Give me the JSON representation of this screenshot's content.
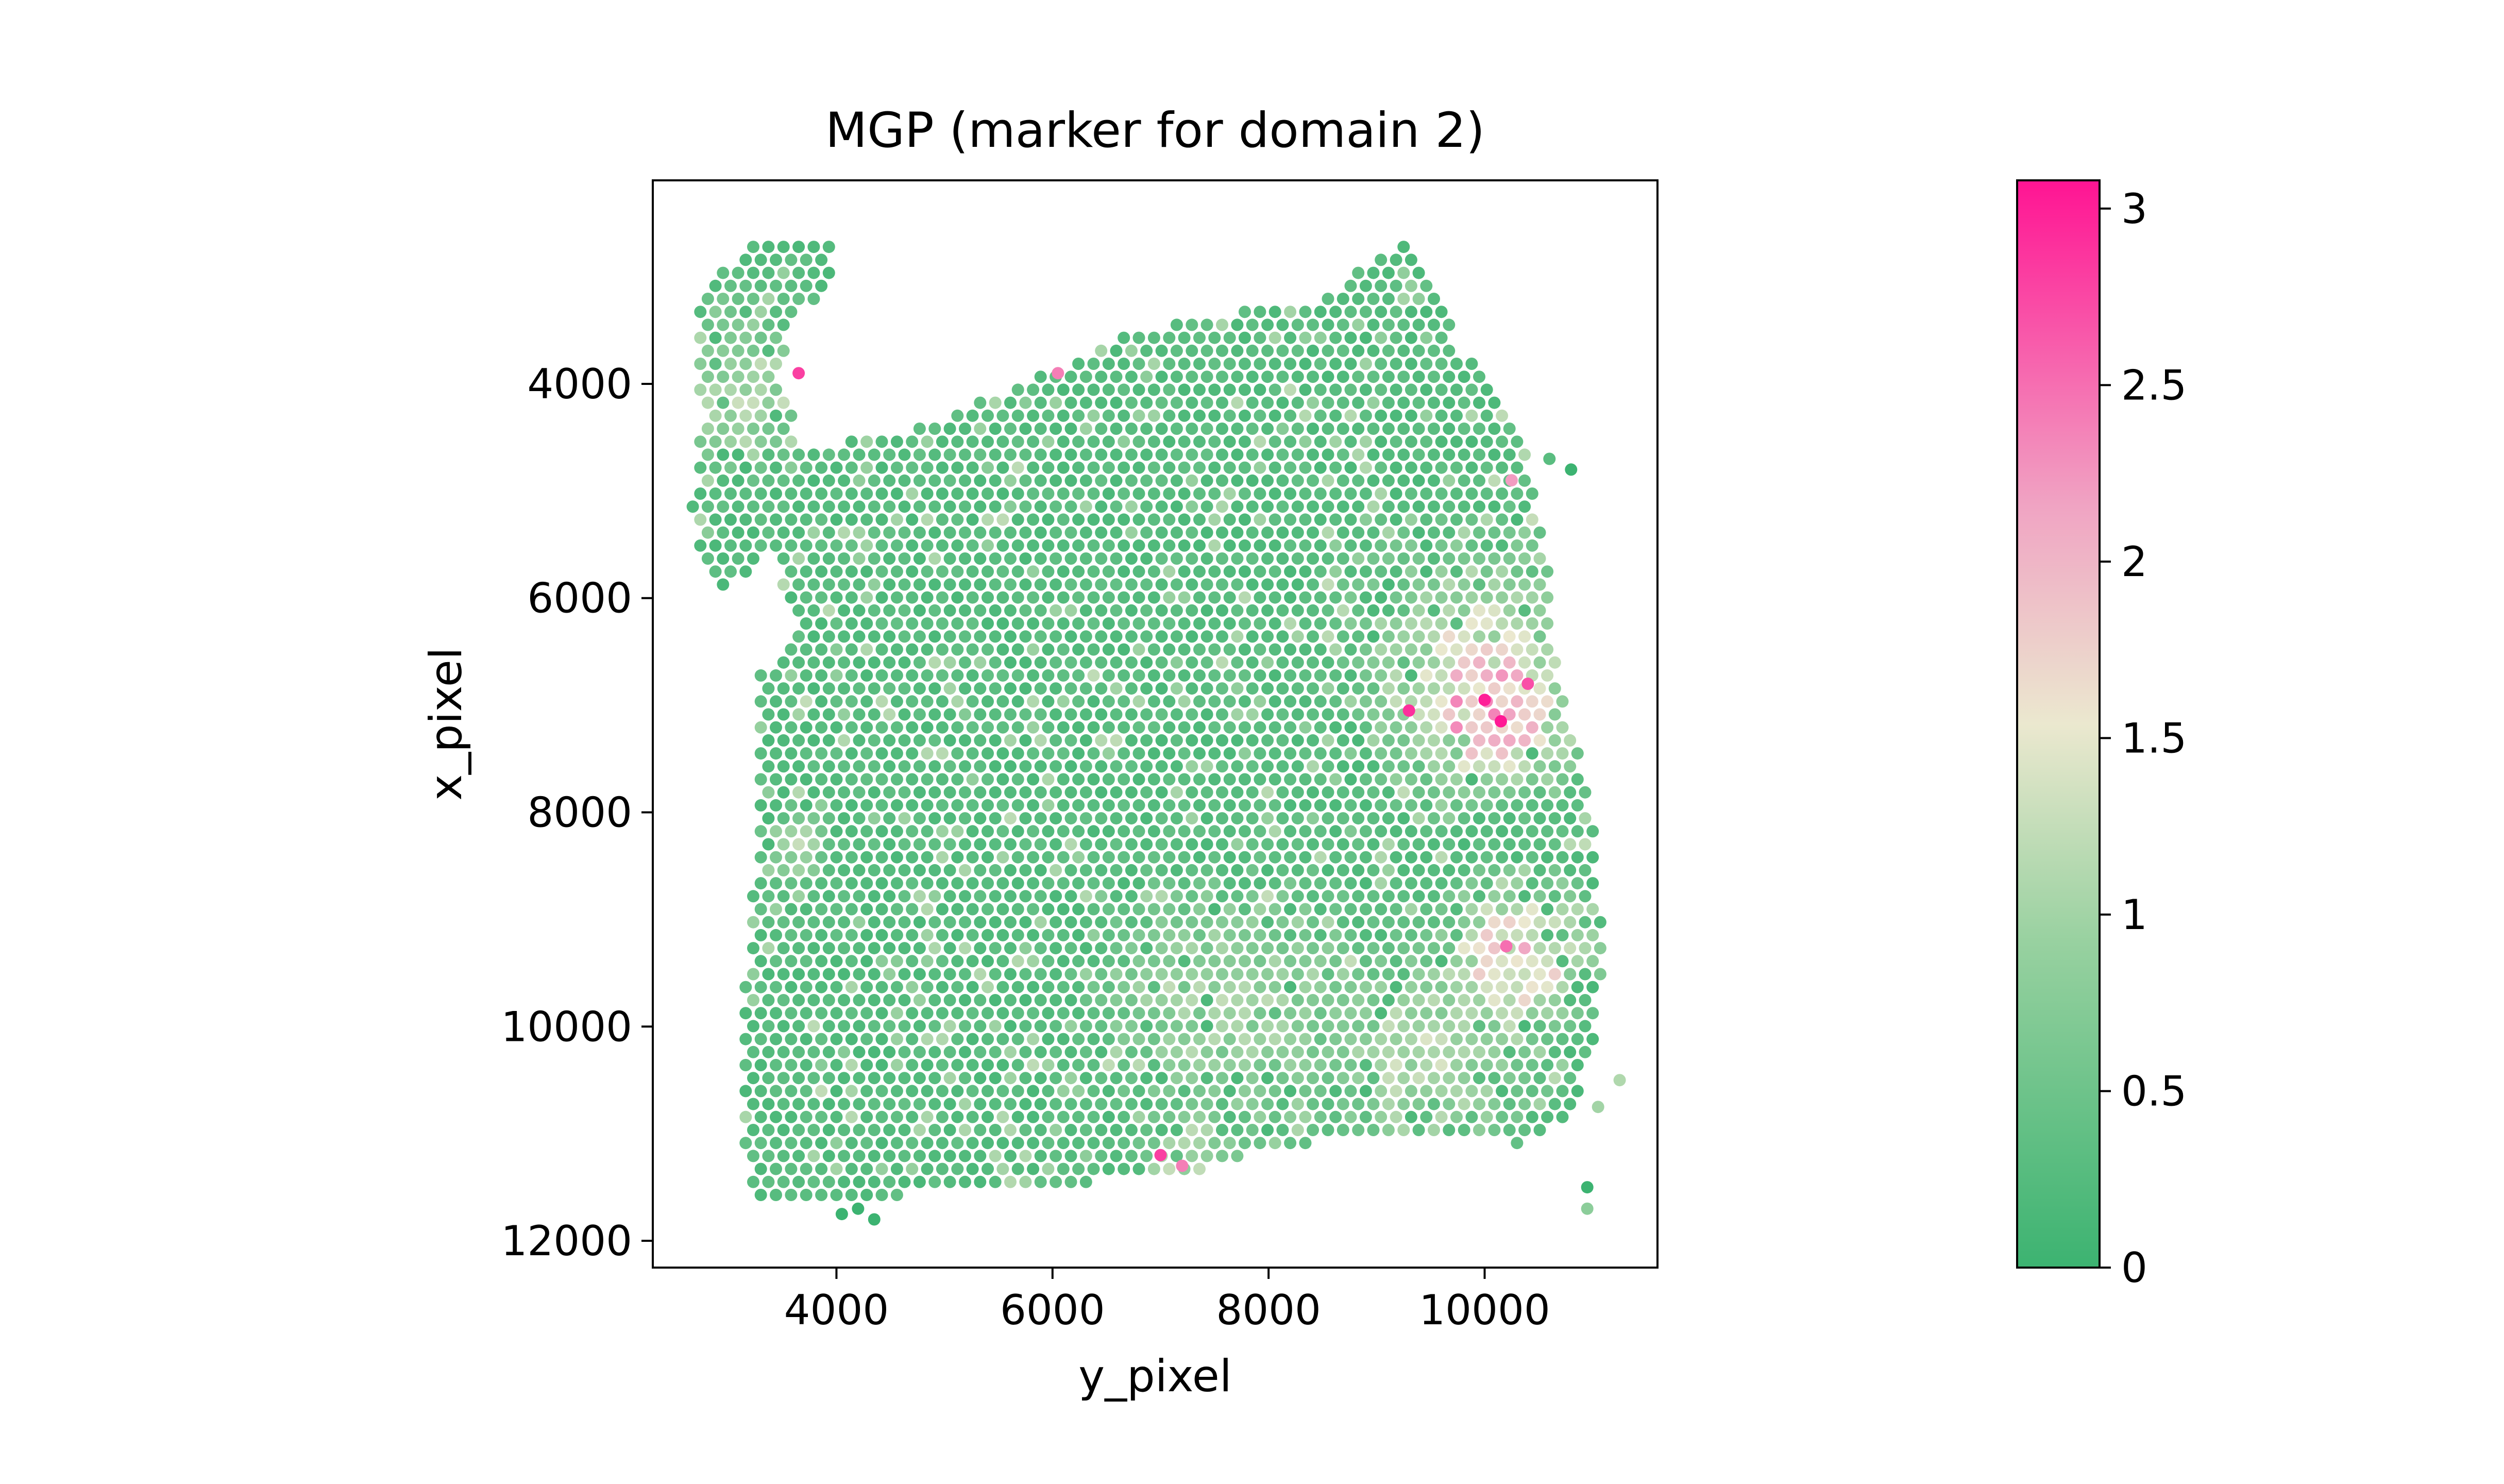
{
  "chart_data": {
    "type": "scatter",
    "title": "MGP (marker for domain 2)",
    "xlabel": "y_pixel",
    "ylabel": "x_pixel",
    "xlim": [
      2300,
      11600
    ],
    "ylim": [
      12250,
      2100
    ],
    "y_inverted": true,
    "x_ticks": [
      4000,
      6000,
      8000,
      10000
    ],
    "y_ticks": [
      4000,
      6000,
      8000,
      10000,
      12000
    ],
    "x_tick_labels": [
      "4000",
      "6000",
      "8000",
      "10000"
    ],
    "y_tick_labels": [
      "4000",
      "6000",
      "8000",
      "10000",
      "12000"
    ],
    "grid": false,
    "point_color_variable": "MGP expression",
    "spot_spacing": 140,
    "colorbar": {
      "range": [
        0,
        3.08
      ],
      "ticks": [
        0,
        0.5,
        1,
        1.5,
        2,
        2.5,
        3
      ],
      "tick_labels": [
        "0",
        "0.5",
        "1",
        "1.5",
        "2",
        "2.5",
        "3"
      ],
      "colors": [
        "#3cb371",
        "#98d1a0",
        "#ebe8cf",
        "#f0a4c3",
        "#ff1493"
      ]
    },
    "tissue_outline": [
      [
        2850,
        3000
      ],
      [
        3300,
        2650
      ],
      [
        4050,
        2700
      ],
      [
        3850,
        3150
      ],
      [
        3550,
        3500
      ],
      [
        3500,
        4000
      ],
      [
        3700,
        4600
      ],
      [
        4800,
        4400
      ],
      [
        5600,
        4050
      ],
      [
        6800,
        3500
      ],
      [
        8500,
        3200
      ],
      [
        9300,
        2600
      ],
      [
        9750,
        3600
      ],
      [
        10350,
        4550
      ],
      [
        10550,
        5400
      ],
      [
        10650,
        6400
      ],
      [
        10800,
        7200
      ],
      [
        11000,
        8000
      ],
      [
        11100,
        9400
      ],
      [
        11000,
        10200
      ],
      [
        10800,
        10800
      ],
      [
        10300,
        11100
      ],
      [
        9300,
        11000
      ],
      [
        8200,
        11100
      ],
      [
        7300,
        11350
      ],
      [
        5900,
        11500
      ],
      [
        5000,
        11550
      ],
      [
        4200,
        11600
      ],
      [
        3200,
        11600
      ],
      [
        3100,
        10900
      ],
      [
        3150,
        9500
      ],
      [
        3300,
        8000
      ],
      [
        3300,
        6700
      ],
      [
        3600,
        6300
      ],
      [
        3400,
        5600
      ],
      [
        2850,
        6000
      ],
      [
        2650,
        5200
      ],
      [
        2750,
        4200
      ],
      [
        2650,
        3500
      ]
    ],
    "hotspots": [
      {
        "x": 10050,
        "y": 7000,
        "level": 2.6,
        "spread": 750
      },
      {
        "x": 9900,
        "y": 6650,
        "level": 1.6,
        "spread": 1300
      },
      {
        "x": 10300,
        "y": 9400,
        "level": 2.0,
        "spread": 800
      },
      {
        "x": 7700,
        "y": 9800,
        "level": 1.1,
        "spread": 1500
      },
      {
        "x": 9500,
        "y": 10300,
        "level": 1.3,
        "spread": 1200
      },
      {
        "x": 3150,
        "y": 4000,
        "level": 1.2,
        "spread": 900
      },
      {
        "x": 7300,
        "y": 11200,
        "level": 1.5,
        "spread": 500
      },
      {
        "x": 3600,
        "y": 8300,
        "level": 1.3,
        "spread": 350
      }
    ],
    "spots": [
      {
        "x": 10150,
        "y": 7150,
        "value": 3.05
      },
      {
        "x": 10000,
        "y": 6950,
        "value": 3.0
      },
      {
        "x": 9300,
        "y": 7050,
        "value": 2.9
      },
      {
        "x": 10400,
        "y": 6800,
        "value": 2.7
      },
      {
        "x": 7000,
        "y": 11200,
        "value": 2.8
      },
      {
        "x": 7200,
        "y": 11300,
        "value": 2.4
      },
      {
        "x": 3650,
        "y": 3900,
        "value": 2.8
      },
      {
        "x": 6050,
        "y": 3900,
        "value": 2.4
      },
      {
        "x": 10250,
        "y": 4900,
        "value": 2.2
      },
      {
        "x": 10200,
        "y": 9250,
        "value": 2.5
      },
      {
        "x": 10950,
        "y": 11500,
        "value": 0.0
      },
      {
        "x": 10950,
        "y": 11700,
        "value": 0.8
      },
      {
        "x": 11050,
        "y": 10750,
        "value": 1.0
      },
      {
        "x": 11250,
        "y": 10500,
        "value": 1.1
      },
      {
        "x": 4050,
        "y": 11750,
        "value": 0.0
      },
      {
        "x": 4200,
        "y": 11700,
        "value": 0.0
      },
      {
        "x": 4350,
        "y": 11800,
        "value": 0.0
      },
      {
        "x": 10600,
        "y": 4700,
        "value": 0.3
      },
      {
        "x": 10800,
        "y": 4800,
        "value": 0.0
      }
    ]
  }
}
